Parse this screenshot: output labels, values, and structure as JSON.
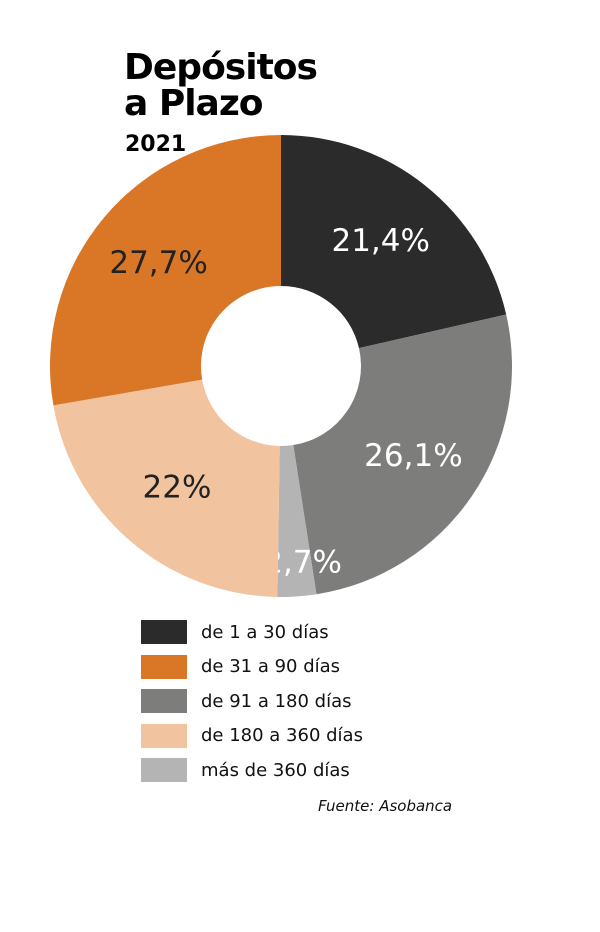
{
  "chart_data": {
    "type": "pie",
    "title": [
      "Depósitos",
      "a Plazo"
    ],
    "subtitle": "2021",
    "source": "Fuente: Asobanca",
    "legend_position": "bottom",
    "slices": [
      {
        "label": "de 1 a 30 días",
        "value": 21.4,
        "display": "21,4%",
        "color": "#2b2b2b",
        "text_color": "#ffffff"
      },
      {
        "label": "de 91 a 180 días",
        "value": 26.1,
        "display": "26,1%",
        "color": "#7d7d7c",
        "text_color": "#ffffff"
      },
      {
        "label": "más de 360 días",
        "value": 2.7,
        "display": "2,7%",
        "color": "#b4b4b4",
        "text_color": "#ffffff"
      },
      {
        "label": "de 180 a 360 días",
        "value": 22,
        "display": "22%",
        "color": "#f1c39e",
        "text_color": "#222222"
      },
      {
        "label": "de 31 a 90 días",
        "value": 27.7,
        "display": "27,7%",
        "color": "#da7727",
        "text_color": "#222222"
      }
    ],
    "legend": [
      {
        "label": "de 1 a 30 días",
        "color": "#2b2b2b"
      },
      {
        "label": "de 31 a 90 días",
        "color": "#da7727"
      },
      {
        "label": "de 91 a 180 días",
        "color": "#7d7d7c"
      },
      {
        "label": "de 180 a 360 días",
        "color": "#f1c39e"
      },
      {
        "label": "más de 360 días",
        "color": "#b4b4b4"
      }
    ]
  }
}
